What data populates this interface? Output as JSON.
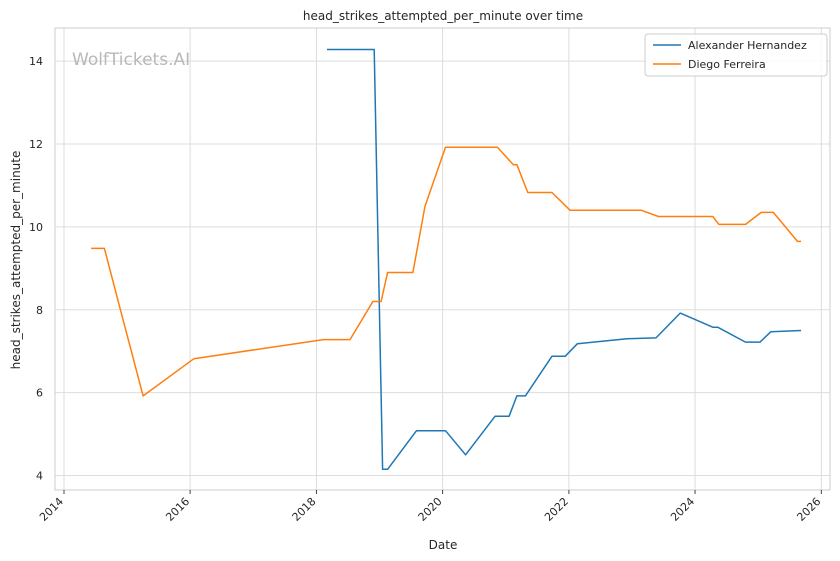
{
  "chart_data": {
    "type": "line",
    "title": "head_strikes_attempted_per_minute over time",
    "xlabel": "Date",
    "ylabel": "head_strikes_attempted_per_minute",
    "watermark": "WolfTickets.AI",
    "xlim": [
      "2013-11-10",
      "2026-02-20"
    ],
    "ylim": [
      3.65,
      14.8
    ],
    "x_ticks": [
      "2014",
      "2016",
      "2018",
      "2020",
      "2022",
      "2024",
      "2026"
    ],
    "y_ticks": [
      4,
      6,
      8,
      10,
      12,
      14
    ],
    "grid": true,
    "legend_position": "top-right",
    "series": [
      {
        "name": "Alexander Hernandez",
        "color": "#1f77b4",
        "points": [
          [
            "2018-03-03",
            14.28
          ],
          [
            "2018-12-01",
            14.28
          ],
          [
            "2019-01-19",
            4.15
          ],
          [
            "2019-02-17",
            4.15
          ],
          [
            "2019-08-03",
            5.08
          ],
          [
            "2020-01-18",
            5.08
          ],
          [
            "2020-05-13",
            4.5
          ],
          [
            "2020-10-31",
            5.43
          ],
          [
            "2021-01-20",
            5.43
          ],
          [
            "2021-03-06",
            5.92
          ],
          [
            "2021-04-24",
            5.92
          ],
          [
            "2021-09-25",
            6.88
          ],
          [
            "2021-12-11",
            6.88
          ],
          [
            "2022-02-19",
            7.18
          ],
          [
            "2022-12-03",
            7.3
          ],
          [
            "2023-05-20",
            7.32
          ],
          [
            "2023-10-07",
            7.92
          ],
          [
            "2024-04-13",
            7.58
          ],
          [
            "2024-05-11",
            7.58
          ],
          [
            "2024-10-19",
            7.22
          ],
          [
            "2025-01-11",
            7.22
          ],
          [
            "2025-03-15",
            7.47
          ],
          [
            "2025-09-06",
            7.5
          ]
        ]
      },
      {
        "name": "Diego Ferreira",
        "color": "#ff7f0e",
        "points": [
          [
            "2014-06-07",
            9.48
          ],
          [
            "2014-08-23",
            9.48
          ],
          [
            "2014-11-08",
            8.25
          ],
          [
            "2015-04-04",
            5.92
          ],
          [
            "2016-01-23",
            6.82
          ],
          [
            "2018-02-10",
            7.28
          ],
          [
            "2018-07-14",
            7.28
          ],
          [
            "2018-11-24",
            8.2
          ],
          [
            "2019-01-10",
            8.2
          ],
          [
            "2019-02-17",
            8.9
          ],
          [
            "2019-07-13",
            8.9
          ],
          [
            "2019-09-21",
            10.5
          ],
          [
            "2020-01-18",
            11.92
          ],
          [
            "2020-11-14",
            11.92
          ],
          [
            "2021-02-13",
            11.5
          ],
          [
            "2021-03-06",
            11.5
          ],
          [
            "2021-05-08",
            10.83
          ],
          [
            "2021-09-25",
            10.83
          ],
          [
            "2022-01-08",
            10.4
          ],
          [
            "2023-02-25",
            10.4
          ],
          [
            "2023-06-03",
            10.25
          ],
          [
            "2024-04-13",
            10.25
          ],
          [
            "2024-05-18",
            10.06
          ],
          [
            "2024-10-19",
            10.06
          ],
          [
            "2025-01-18",
            10.35
          ],
          [
            "2025-03-29",
            10.35
          ],
          [
            "2025-08-16",
            9.65
          ],
          [
            "2025-09-06",
            9.65
          ]
        ]
      }
    ]
  }
}
